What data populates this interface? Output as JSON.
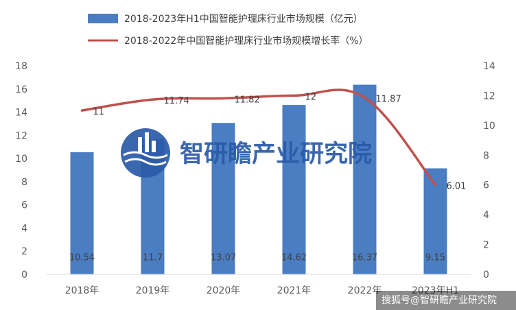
{
  "chart_data": {
    "type": "bar",
    "categories": [
      "2018年",
      "2019年",
      "2020年",
      "2021年",
      "2022年",
      "2023年H1"
    ],
    "series": [
      {
        "name": "2018-2023年H1中国智能护理床行业市场规模（亿元）",
        "kind": "bar",
        "axis": "left",
        "values": [
          10.54,
          11.7,
          13.07,
          14.62,
          16.37,
          9.15
        ],
        "labels": [
          "10.54",
          "11.7",
          "13.07",
          "14.62",
          "16.37",
          "9.15"
        ],
        "color": "#4a7dc1"
      },
      {
        "name": "2018-2022年中国智能护理床行业市场规模增长率（%）",
        "kind": "line",
        "axis": "right",
        "values": [
          11,
          11.74,
          11.82,
          12,
          11.87,
          6.01
        ],
        "labels": [
          "11",
          "11.74",
          "11.82",
          "12",
          "11.87",
          "6.01"
        ],
        "color": "#c0504d"
      }
    ],
    "y_left": {
      "min": 0,
      "max": 18,
      "step": 2,
      "ticks": [
        "0",
        "2",
        "4",
        "6",
        "8",
        "10",
        "12",
        "14",
        "16",
        "18"
      ]
    },
    "y_right": {
      "min": 0,
      "max": 14,
      "step": 2,
      "ticks": [
        "0",
        "2",
        "4",
        "6",
        "8",
        "10",
        "12",
        "14"
      ]
    },
    "legend_position": "top",
    "grid": false
  },
  "watermark": {
    "text": "智研瞻产业研究院",
    "logo": "zhiyanzhan-logo-icon",
    "color": "#2a5aa8"
  },
  "source": {
    "text": "搜狐号@智研瞻产业研究院"
  }
}
